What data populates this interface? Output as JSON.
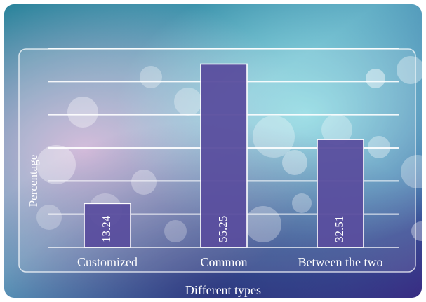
{
  "chart_data": {
    "type": "bar",
    "categories": [
      "Customized",
      "Common",
      "Between the two"
    ],
    "values": [
      13.24,
      55.25,
      32.51
    ],
    "value_labels": [
      "13.24",
      "55.25",
      "32.51"
    ],
    "xlabel": "Different types",
    "ylabel": "Percentage",
    "ylim": [
      0,
      60
    ],
    "grid": true,
    "legend": "none",
    "colors": {
      "bar_fill": "#5a4e9e",
      "bar_stroke": "#ffffff",
      "grid": "#ffffff",
      "background_top": "#1e8ca0",
      "background_bottom": "#3d2f86",
      "text": "#ffffff"
    }
  }
}
